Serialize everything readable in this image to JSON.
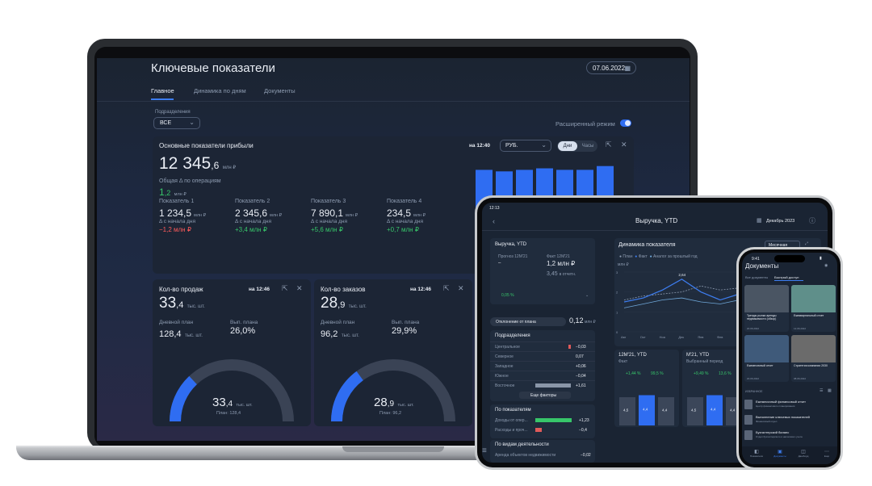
{
  "laptop": {
    "title": "Ключевые показатели",
    "date": "07.06.2022",
    "tabs": [
      "Главное",
      "Динамика по дням",
      "Документы"
    ],
    "filter_label": "Подразделения",
    "filter_value": "ВСЕ",
    "advanced_mode": "Расширенный режим",
    "profit": {
      "title": "Основные показатели прибыли",
      "time": "на 12:40",
      "currency": "РУБ.",
      "toggle_days": "Дни",
      "toggle_hours": "Часы",
      "main_int": "12 345",
      "main_dec": ",6",
      "main_unit": "млн ₽",
      "delta_label_1": "Общая Δ по",
      "delta_label_2": "операциям",
      "delta_int": "1",
      "delta_dec": ",2",
      "delta_unit": "млн ₽",
      "indicators": [
        {
          "name": "Показатель 1",
          "int": "1 234",
          "dec": ",5",
          "unit": "млн ₽",
          "sub": "Δ с начала дня",
          "delta": "−1,2 млн ₽",
          "delta_color": "#ff5b5b"
        },
        {
          "name": "Показатель 2",
          "int": "2 345",
          "dec": ",6",
          "unit": "млн ₽",
          "sub": "Δ с начала дня",
          "delta": "+3,4 млн ₽",
          "delta_color": "#37c66a"
        },
        {
          "name": "Показатель 3",
          "int": "7 890",
          "dec": ",1",
          "unit": "млн ₽",
          "sub": "Δ с начала дня",
          "delta": "+5,6 млн ₽",
          "delta_color": "#37c66a"
        },
        {
          "name": "Показатель 4",
          "int": "234",
          "dec": ",5",
          "unit": "млн ₽",
          "sub": "Δ с начала дня",
          "delta": "+0,7 млн ₽",
          "delta_color": "#37c66a"
        }
      ]
    },
    "sales": {
      "title": "Кол-во продаж",
      "time": "на 12:46",
      "int": "33",
      "dec": ",4",
      "unit": "тыс. шт.",
      "plan_label_1": "Дневной",
      "plan_label_2": "план",
      "plan_int": "128",
      "plan_dec": ",4",
      "plan_unit": "тыс. шт.",
      "exec_label_1": "Вып. плана",
      "exec": "26,0%",
      "gauge_int": "33",
      "gauge_dec": ",4",
      "gauge_unit": "тыс. шт.",
      "gauge_plan": "План: 128,4",
      "fraction": 0.26
    },
    "orders": {
      "title": "Кол-во заказов",
      "time": "на 12:46",
      "int": "28",
      "dec": ",9",
      "unit": "тыс. шт.",
      "plan_label_1": "Дневной",
      "plan_label_2": "план",
      "plan_int": "96",
      "plan_dec": ",2",
      "plan_unit": "тыс. шт.",
      "exec_label_1": "Вып. плана",
      "exec": "29,9%",
      "gauge_int": "28",
      "gauge_dec": ",9",
      "gauge_unit": "тыс. шт.",
      "gauge_plan": "План: 96,2",
      "fraction": 0.299
    },
    "bar_chart": {
      "values": [
        0.9,
        0.88,
        0.9,
        0.92,
        0.9,
        0.9,
        0.95
      ],
      "color": "#2f6df2"
    }
  },
  "tablet": {
    "status_time": "12:13",
    "title": "Выручка, YTD",
    "period": "Декабрь 2023",
    "left_card": {
      "title": "Выручка, YTD",
      "forecast_label": "Прогноз 12М'21",
      "forecast_value": "–",
      "fact_label": "Факт 12М'21",
      "fact_value": "1,2 млн ₽",
      "sub_value": "3,45",
      "sub_unit": "в отчетн.",
      "yoy": "0,05 %"
    },
    "deviation_label": "Отклонение от плана",
    "deviation_value": "0,12",
    "deviation_unit": "млн ₽",
    "departments": {
      "title": "Подразделения",
      "rows": [
        {
          "name": "Центральное",
          "value": "−0,03",
          "color": "#e05a5a",
          "fill": 0.05
        },
        {
          "name": "Северное",
          "value": "0,07",
          "color": "#8a96a8",
          "fill": 0.0
        },
        {
          "name": "Западное",
          "value": "+0,06",
          "color": "#8a96a8",
          "fill": 0.0
        },
        {
          "name": "Южное",
          "value": "−0,04",
          "color": "#8a96a8",
          "fill": 0.0
        },
        {
          "name": "Восточное",
          "value": "+1,61",
          "color": "#8a96a8",
          "fill": 0.85
        }
      ],
      "more": "Еще факторы"
    },
    "indicators": {
      "title": "По показателям",
      "rows": [
        {
          "name": "Доходы от опер...",
          "value": "+1,23",
          "color": "#37c66a",
          "fill": 0.9
        },
        {
          "name": "Расходы и проч...",
          "value": "−0,4",
          "color": "#e05a5a",
          "fill": 0.15
        }
      ]
    },
    "activity": {
      "title": "По видам деятельности",
      "row": "Аренда объектов недвижимости",
      "row_value": "−0,02"
    },
    "dynamics": {
      "title": "Динамика показателя",
      "mode": "Месячная",
      "legend": [
        "План",
        "Факт",
        "Аналог за прошлый год"
      ],
      "unit": "млн ₽",
      "peak_label": "2,64",
      "y_ticks": [
        "3",
        "2",
        "1",
        "0"
      ],
      "x_ticks": [
        "Авг",
        "Окт",
        "Ноя",
        "Дек",
        "Янв",
        "Фев",
        "Мар",
        "Апр",
        "Май",
        "Июн",
        "Июл"
      ],
      "series": [
        {
          "name": "План",
          "values": [
            1.6,
            1.8,
            1.9,
            2.0,
            2.3,
            2.1,
            2.2,
            2.4,
            2.3,
            2.5,
            2.6
          ]
        },
        {
          "name": "Факт",
          "values": [
            1.5,
            1.7,
            2.1,
            2.64,
            2.0,
            1.6,
            1.9,
            2.2,
            1.8,
            2.1,
            2.0
          ]
        },
        {
          "name": "Аналог за прошлый год",
          "values": [
            1.2,
            1.4,
            1.6,
            1.7,
            1.5,
            1.4,
            1.6,
            1.8,
            1.6,
            1.7,
            1.8
          ]
        }
      ]
    },
    "ytd_left": {
      "title": "12М'21, YTD",
      "sub": "Факт",
      "delta1": "+1,44 %",
      "delta2": "99,5 %",
      "bars": [
        {
          "label": "4,5",
          "h": 0.7
        },
        {
          "label": "4,4",
          "h": 0.75
        },
        {
          "label": "4,4",
          "h": 0.7
        }
      ]
    },
    "ytd_right": {
      "title": "М'21, YTD",
      "sub": "Выбранный период",
      "delta1": "+9,49 %",
      "delta2": "13,6 %",
      "bars": [
        {
          "label": "4,5",
          "h": 0.7
        },
        {
          "label": "4,4",
          "h": 0.75
        },
        {
          "label": "4,4",
          "h": 0.7
        }
      ]
    }
  },
  "phone": {
    "status_time": "9:41",
    "title": "Документы",
    "tabs": [
      "Все документы",
      "Быстрый доступ"
    ],
    "docs": [
      {
        "title": "Тренды рынка аренды недвижимости (обзор)",
        "date": "20.06.2022"
      },
      {
        "title": "Ежеквартальный отчет",
        "date": "12.06.2022"
      },
      {
        "title": "Ежемесячный отчет",
        "date": "20.06.2022"
      },
      {
        "title": "Стратегия компании 2030",
        "date": "08.06.2022"
      }
    ],
    "fav_label": "ИЗБРАННОЕ",
    "favorites": [
      {
        "title": "Ежемесячный финансовый отчет",
        "sub": "Центр финансового планирования"
      },
      {
        "title": "Выполнение ключевых показателей",
        "sub": "Финансовый отдел"
      },
      {
        "title": "Бухгалтерский баланс",
        "sub": "Отдел бухгалтерского и налогового учета"
      }
    ],
    "nav": [
      "Показатели",
      "Документы",
      "Дашборд",
      "Ещё"
    ]
  }
}
